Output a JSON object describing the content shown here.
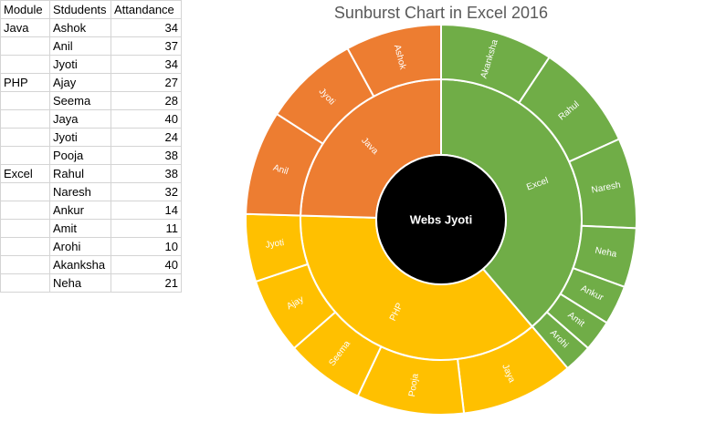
{
  "table": {
    "headers": [
      "Module",
      "Stdudents",
      "Attandance"
    ],
    "rows": [
      [
        "Java",
        "Ashok",
        "34"
      ],
      [
        "",
        "Anil",
        "37"
      ],
      [
        "",
        "Jyoti",
        "34"
      ],
      [
        "PHP",
        "Ajay",
        "27"
      ],
      [
        "",
        "Seema",
        "28"
      ],
      [
        "",
        "Jaya",
        "40"
      ],
      [
        "",
        "Jyoti",
        "24"
      ],
      [
        "",
        "Pooja",
        "38"
      ],
      [
        "Excel",
        "Rahul",
        "38"
      ],
      [
        "",
        "Naresh",
        "32"
      ],
      [
        "",
        "Ankur",
        "14"
      ],
      [
        "",
        "Amit",
        "11"
      ],
      [
        "",
        "Arohi",
        "10"
      ],
      [
        "",
        "Akanksha",
        "40"
      ],
      [
        "",
        "Neha",
        "21"
      ]
    ]
  },
  "chart_data": {
    "type": "sunburst",
    "title": "Sunburst Chart in Excel 2016",
    "center_label": "Webs Jyoti",
    "colors": {
      "Excel": "#70ad47",
      "PHP": "#ffc000",
      "Java": "#ed7d31",
      "center": "#000000",
      "divider": "#ffffff"
    },
    "groups": [
      {
        "name": "Excel",
        "children": [
          {
            "name": "Akanksha",
            "value": 40
          },
          {
            "name": "Rahul",
            "value": 38
          },
          {
            "name": "Naresh",
            "value": 32
          },
          {
            "name": "Neha",
            "value": 21
          },
          {
            "name": "Ankur",
            "value": 14
          },
          {
            "name": "Amit",
            "value": 11
          },
          {
            "name": "Arohi",
            "value": 10
          }
        ]
      },
      {
        "name": "PHP",
        "children": [
          {
            "name": "Jaya",
            "value": 40
          },
          {
            "name": "Pooja",
            "value": 38
          },
          {
            "name": "Seema",
            "value": 28
          },
          {
            "name": "Ajay",
            "value": 27
          },
          {
            "name": "Jyoti",
            "value": 24
          }
        ]
      },
      {
        "name": "Java",
        "children": [
          {
            "name": "Anil",
            "value": 37
          },
          {
            "name": "Jyoti",
            "value": 34
          },
          {
            "name": "Ashok",
            "value": 34
          }
        ]
      }
    ]
  }
}
